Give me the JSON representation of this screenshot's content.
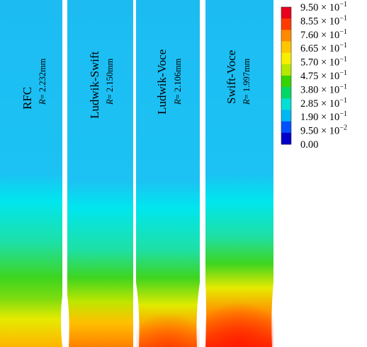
{
  "specimens": [
    {
      "name": "RFC",
      "r_prefix": "R",
      "r_value": "= 2.232mm"
    },
    {
      "name": "Ludwik-Swift",
      "r_prefix": "R",
      "r_value": "= 2.150mm"
    },
    {
      "name": "Ludwik-Voce",
      "r_prefix": "R",
      "r_value": "= 2.106mm"
    },
    {
      "name": "Swift-Voce",
      "r_prefix": "R",
      "r_value": "= 1.997mm"
    }
  ],
  "legend": {
    "labels": [
      {
        "mant": "9.50",
        "exp": "−1"
      },
      {
        "mant": "8.55",
        "exp": "−1"
      },
      {
        "mant": "7.60",
        "exp": "−1"
      },
      {
        "mant": "6.65",
        "exp": "−1"
      },
      {
        "mant": "5.70",
        "exp": "−1"
      },
      {
        "mant": "4.75",
        "exp": "−1"
      },
      {
        "mant": "3.80",
        "exp": "−1"
      },
      {
        "mant": "2.85",
        "exp": "−1"
      },
      {
        "mant": "1.90",
        "exp": "−1"
      },
      {
        "mant": "9.50",
        "exp": "−2"
      },
      {
        "mant": "0.00",
        "exp": ""
      }
    ],
    "times": "× 10",
    "colors": [
      "#e8001c",
      "#ff3a00",
      "#ff8a00",
      "#ffc600",
      "#f8ee00",
      "#b5e800",
      "#35d400",
      "#00d864",
      "#00e0d4",
      "#00b7f3",
      "#0050ff",
      "#0000c8"
    ]
  },
  "colors": {
    "base_cyan": "#1bbcf3",
    "mid_cyan": "#00e8ee",
    "green": "#48d41c",
    "yellow": "#f2e600",
    "orange": "#ffa000",
    "red": "#ff4000"
  }
}
